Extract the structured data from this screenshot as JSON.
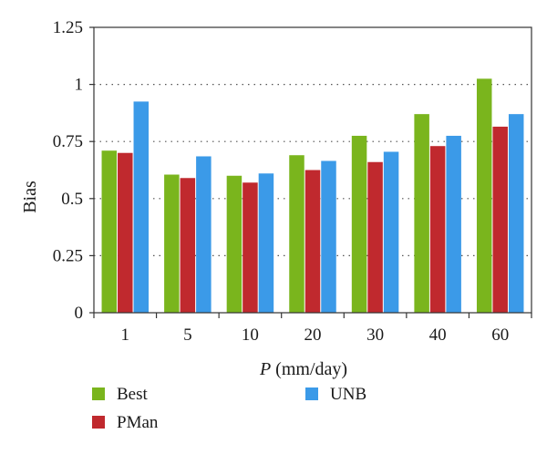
{
  "chart_data": {
    "type": "bar",
    "categories": [
      "1",
      "5",
      "10",
      "20",
      "30",
      "40",
      "60"
    ],
    "series": [
      {
        "name": "Best",
        "color": "#7ab51d",
        "values": [
          0.71,
          0.605,
          0.6,
          0.69,
          0.775,
          0.87,
          1.025
        ]
      },
      {
        "name": "PMan",
        "color": "#c0292e",
        "values": [
          0.7,
          0.59,
          0.57,
          0.625,
          0.66,
          0.73,
          0.815
        ]
      },
      {
        "name": "UNB",
        "color": "#3b9ae8",
        "values": [
          0.925,
          0.685,
          0.61,
          0.665,
          0.705,
          0.775,
          0.87
        ]
      }
    ],
    "title": "",
    "xlabel_var": "P",
    "xlabel_unit": " (mm/day)",
    "ylabel": "Bias",
    "ylim": [
      0,
      1.25
    ],
    "yticks": [
      "0",
      "0.25",
      "0.5",
      "0.75",
      "1",
      "1.25"
    ],
    "grid": "dotted horizontal",
    "legend_position": "bottom"
  }
}
